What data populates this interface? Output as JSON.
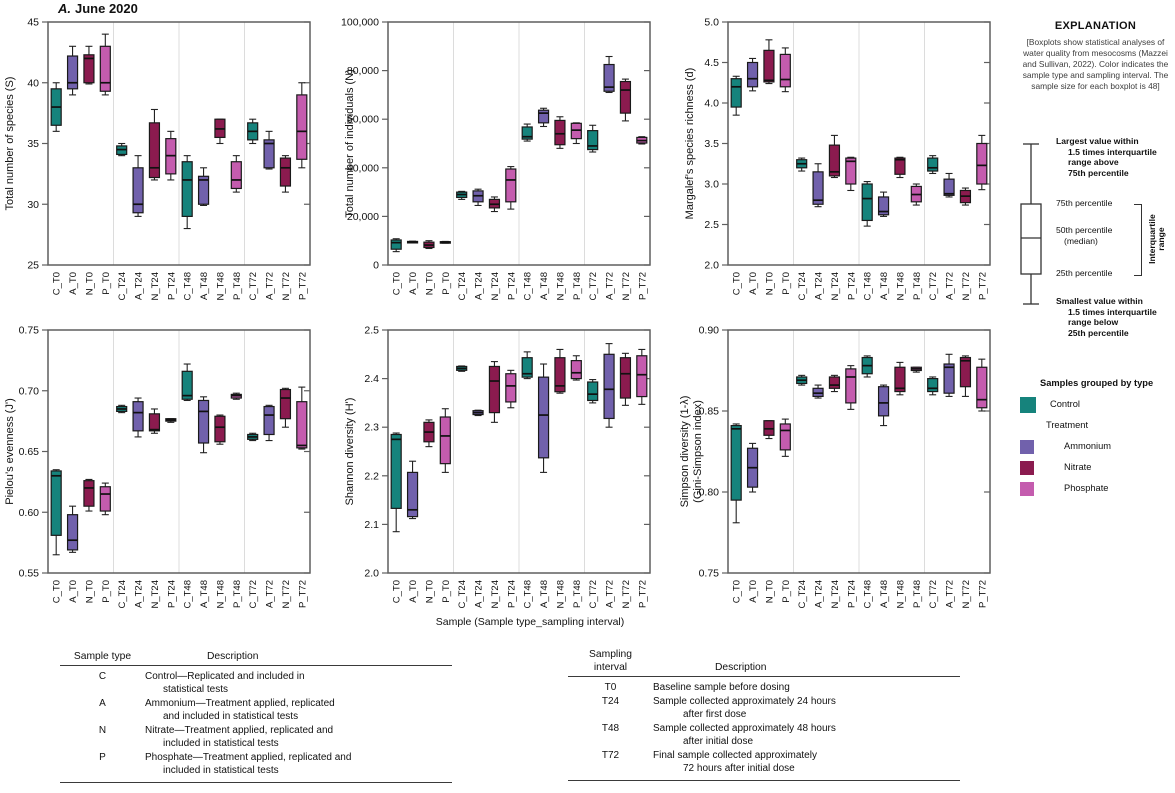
{
  "title": {
    "prefix": "A.",
    "rest": "June 2020"
  },
  "xlabel": "Sample (Sample type_sampling interval)",
  "categories": [
    "C_T0",
    "A_T0",
    "N_T0",
    "P_T0",
    "C_T24",
    "A_T24",
    "N_T24",
    "P_T24",
    "C_T48",
    "A_T48",
    "N_T48",
    "P_T48",
    "C_T72",
    "A_T72",
    "N_T72",
    "P_T72"
  ],
  "colors": {
    "groups": {
      "C": "#16837C",
      "A": "#7161AC",
      "N": "#8B1B4F",
      "P": "#C45CAE"
    },
    "frame": "#5f5f5f",
    "separator": "#dcdcdc",
    "box_stroke": "#222222"
  },
  "chart_data": [
    {
      "type": "box",
      "ylabel": [
        "Total number of species (S)"
      ],
      "ylim": [
        25,
        45
      ],
      "yticks": [
        25,
        30,
        35,
        40,
        45
      ],
      "ytick_labels": [
        "25",
        "30",
        "35",
        "40",
        "45"
      ],
      "values": [
        [
          36,
          36.5,
          38,
          39.5,
          40
        ],
        [
          39,
          39.5,
          40,
          42.2,
          43
        ],
        [
          39.9,
          40,
          42,
          42.3,
          43
        ],
        [
          39,
          39.3,
          40,
          43,
          44
        ],
        [
          34,
          34.1,
          34.5,
          34.8,
          35
        ],
        [
          29,
          29.3,
          30,
          33,
          34
        ],
        [
          32,
          32.2,
          33,
          36.7,
          37.8
        ],
        [
          32,
          32.5,
          34,
          35.4,
          36
        ],
        [
          28,
          29,
          32,
          33.5,
          34
        ],
        [
          29.9,
          30,
          32,
          32.3,
          33
        ],
        [
          35,
          35.5,
          36.2,
          37,
          37
        ],
        [
          31,
          31.3,
          32,
          33.5,
          34
        ],
        [
          35,
          35.3,
          36,
          36.7,
          37
        ],
        [
          32.9,
          33,
          35,
          35.3,
          36
        ],
        [
          31,
          31.5,
          33,
          33.8,
          34
        ],
        [
          33,
          33.7,
          36,
          39,
          40
        ]
      ]
    },
    {
      "type": "box",
      "ylabel": [
        "Total number of individuals (N)"
      ],
      "ylim": [
        0,
        100000
      ],
      "yticks": [
        0,
        20000,
        40000,
        60000,
        80000,
        100000
      ],
      "ytick_labels": [
        "0",
        "20,000",
        "40,000",
        "60,000",
        "80,000",
        "100,000"
      ],
      "values": [
        [
          5500,
          6500,
          9200,
          10300,
          10800
        ],
        [
          9200,
          9300,
          9500,
          9700,
          9800
        ],
        [
          6800,
          7200,
          8200,
          9400,
          10000
        ],
        [
          9000,
          9200,
          9400,
          9600,
          9700
        ],
        [
          27000,
          27800,
          29000,
          30000,
          30300
        ],
        [
          24500,
          26000,
          28500,
          30500,
          31200
        ],
        [
          22000,
          23500,
          25000,
          27000,
          28000
        ],
        [
          23000,
          26000,
          35000,
          39500,
          40500
        ],
        [
          51000,
          51800,
          52800,
          56800,
          58000
        ],
        [
          57000,
          58500,
          62500,
          63700,
          64500
        ],
        [
          48000,
          49500,
          54000,
          59500,
          61000
        ],
        [
          50000,
          52000,
          55500,
          58300,
          58500
        ],
        [
          46500,
          47500,
          49000,
          55300,
          57500
        ],
        [
          71000,
          71500,
          73200,
          82500,
          85800
        ],
        [
          59300,
          62500,
          72000,
          75500,
          76500
        ],
        [
          49800,
          50200,
          51200,
          52500,
          52800
        ]
      ]
    },
    {
      "type": "box",
      "ylabel": [
        "Margalef’s species richness (d)"
      ],
      "ylim": [
        2.0,
        5.0
      ],
      "yticks": [
        2.0,
        2.5,
        3.0,
        3.5,
        4.0,
        4.5,
        5.0
      ],
      "ytick_labels": [
        "2.0",
        "2.5",
        "3.0",
        "3.5",
        "4.0",
        "4.5",
        "5.0"
      ],
      "values": [
        [
          3.85,
          3.95,
          4.2,
          4.3,
          4.33
        ],
        [
          4.15,
          4.2,
          4.3,
          4.5,
          4.55
        ],
        [
          4.24,
          4.26,
          4.28,
          4.65,
          4.78
        ],
        [
          4.14,
          4.2,
          4.29,
          4.6,
          4.68
        ],
        [
          3.16,
          3.2,
          3.25,
          3.3,
          3.32
        ],
        [
          2.72,
          2.75,
          2.8,
          3.15,
          3.25
        ],
        [
          3.08,
          3.1,
          3.15,
          3.48,
          3.6
        ],
        [
          2.92,
          3.0,
          3.28,
          3.32,
          3.33
        ],
        [
          2.48,
          2.55,
          2.82,
          3.0,
          3.03
        ],
        [
          2.6,
          2.62,
          2.66,
          2.84,
          2.9
        ],
        [
          3.08,
          3.12,
          3.3,
          3.32,
          3.33
        ],
        [
          2.74,
          2.78,
          2.87,
          2.97,
          3.0
        ],
        [
          3.13,
          3.16,
          3.2,
          3.32,
          3.35
        ],
        [
          2.84,
          2.86,
          2.88,
          3.06,
          3.13
        ],
        [
          2.74,
          2.77,
          2.85,
          2.92,
          2.95
        ],
        [
          2.93,
          3.0,
          3.23,
          3.5,
          3.6
        ]
      ]
    },
    {
      "type": "box",
      "ylabel": [
        "Pielou’s evenness (J')"
      ],
      "ylim": [
        0.55,
        0.75
      ],
      "yticks": [
        0.55,
        0.6,
        0.65,
        0.7,
        0.75
      ],
      "ytick_labels": [
        "0.55",
        "0.60",
        "0.65",
        "0.70",
        "0.75"
      ],
      "values": [
        [
          0.565,
          0.581,
          0.63,
          0.634,
          0.635
        ],
        [
          0.567,
          0.569,
          0.577,
          0.598,
          0.605
        ],
        [
          0.601,
          0.605,
          0.62,
          0.626,
          0.627
        ],
        [
          0.598,
          0.601,
          0.615,
          0.621,
          0.624
        ],
        [
          0.682,
          0.683,
          0.685,
          0.687,
          0.688
        ],
        [
          0.662,
          0.667,
          0.682,
          0.691,
          0.694
        ],
        [
          0.665,
          0.667,
          0.668,
          0.681,
          0.685
        ],
        [
          0.674,
          0.675,
          0.676,
          0.677,
          0.677
        ],
        [
          0.692,
          0.693,
          0.696,
          0.716,
          0.722
        ],
        [
          0.649,
          0.657,
          0.683,
          0.692,
          0.695
        ],
        [
          0.656,
          0.658,
          0.67,
          0.679,
          0.68
        ],
        [
          0.693,
          0.694,
          0.696,
          0.697,
          0.698
        ],
        [
          0.659,
          0.66,
          0.662,
          0.664,
          0.665
        ],
        [
          0.659,
          0.664,
          0.68,
          0.687,
          0.688
        ],
        [
          0.67,
          0.677,
          0.694,
          0.701,
          0.702
        ],
        [
          0.652,
          0.653,
          0.655,
          0.691,
          0.703
        ]
      ]
    },
    {
      "type": "box",
      "ylabel": [
        "Shannon diversity (H')"
      ],
      "ylim": [
        2.0,
        2.5
      ],
      "yticks": [
        2.0,
        2.1,
        2.2,
        2.3,
        2.4,
        2.5
      ],
      "ytick_labels": [
        "2.0",
        "2.1",
        "2.2",
        "2.3",
        "2.4",
        "2.5"
      ],
      "values": [
        [
          2.085,
          2.133,
          2.275,
          2.285,
          2.288
        ],
        [
          2.112,
          2.116,
          2.13,
          2.207,
          2.23
        ],
        [
          2.26,
          2.27,
          2.29,
          2.31,
          2.315
        ],
        [
          2.207,
          2.225,
          2.282,
          2.321,
          2.338
        ],
        [
          2.415,
          2.417,
          2.421,
          2.425,
          2.426
        ],
        [
          2.324,
          2.326,
          2.33,
          2.334,
          2.335
        ],
        [
          2.31,
          2.33,
          2.395,
          2.425,
          2.435
        ],
        [
          2.34,
          2.352,
          2.385,
          2.41,
          2.417
        ],
        [
          2.4,
          2.403,
          2.41,
          2.443,
          2.455
        ],
        [
          2.207,
          2.237,
          2.325,
          2.403,
          2.43
        ],
        [
          2.37,
          2.373,
          2.385,
          2.443,
          2.46
        ],
        [
          2.397,
          2.4,
          2.412,
          2.437,
          2.447
        ],
        [
          2.35,
          2.355,
          2.368,
          2.393,
          2.398
        ],
        [
          2.3,
          2.318,
          2.378,
          2.45,
          2.472
        ],
        [
          2.345,
          2.36,
          2.41,
          2.443,
          2.452
        ],
        [
          2.347,
          2.363,
          2.408,
          2.447,
          2.46
        ]
      ]
    },
    {
      "type": "box",
      "ylabel": [
        "Simpson diversity (1-λ)",
        "(Gini-Simpson index)"
      ],
      "ylim": [
        0.75,
        0.9
      ],
      "yticks": [
        0.75,
        0.8,
        0.85,
        0.9
      ],
      "ytick_labels": [
        "0.75",
        "0.80",
        "0.85",
        "0.90"
      ],
      "values": [
        [
          0.781,
          0.795,
          0.839,
          0.841,
          0.842
        ],
        [
          0.8,
          0.803,
          0.815,
          0.827,
          0.83
        ],
        [
          0.833,
          0.835,
          0.839,
          0.844,
          0.844
        ],
        [
          0.822,
          0.826,
          0.838,
          0.842,
          0.845
        ],
        [
          0.866,
          0.867,
          0.869,
          0.871,
          0.872
        ],
        [
          0.858,
          0.859,
          0.861,
          0.864,
          0.866
        ],
        [
          0.862,
          0.864,
          0.866,
          0.871,
          0.872
        ],
        [
          0.851,
          0.855,
          0.871,
          0.876,
          0.878
        ],
        [
          0.871,
          0.873,
          0.878,
          0.883,
          0.884
        ],
        [
          0.841,
          0.847,
          0.855,
          0.865,
          0.866
        ],
        [
          0.86,
          0.862,
          0.864,
          0.877,
          0.88
        ],
        [
          0.874,
          0.875,
          0.876,
          0.877,
          0.877
        ],
        [
          0.86,
          0.862,
          0.864,
          0.87,
          0.871
        ],
        [
          0.859,
          0.861,
          0.877,
          0.879,
          0.885
        ],
        [
          0.859,
          0.865,
          0.881,
          0.883,
          0.884
        ],
        [
          0.85,
          0.852,
          0.857,
          0.877,
          0.882
        ]
      ]
    }
  ],
  "explanation": {
    "heading": "EXPLANATION",
    "note": "[Boxplots show statistical analyses of water quality from mesocosms (Mazzei and Sullivan, 2022). Color indicates the sample type and sampling interval. The sample size for each boxplot is 48]",
    "largest_lines": [
      "Largest value within",
      "1.5 times interquartile",
      "range above",
      "75th percentile"
    ],
    "p75_label": "75th percentile",
    "median_lines": [
      "50th percentile",
      "(median)"
    ],
    "p25_label": "25th percentile",
    "iqr_lines": [
      "Interquartile",
      "range"
    ],
    "smallest_lines": [
      "Smallest value within",
      "1.5 times interquartile",
      "range below",
      "25th percentile"
    ],
    "legend_heading": "Samples grouped by type",
    "legend": [
      {
        "label": "Control",
        "color": "#16837C",
        "indent": false
      },
      {
        "label": "Treatment",
        "color": null,
        "indent": false
      },
      {
        "label": "Ammonium",
        "color": "#7161AC",
        "indent": true
      },
      {
        "label": "Nitrate",
        "color": "#8B1B4F",
        "indent": true
      },
      {
        "label": "Phosphate",
        "color": "#C45CAE",
        "indent": true
      }
    ]
  },
  "tables": [
    {
      "headers": [
        "Sample type",
        "Description"
      ],
      "rows": [
        {
          "key": "C",
          "desc": [
            "Control—Replicated and included in",
            "statistical tests"
          ]
        },
        {
          "key": "A",
          "desc": [
            "Ammonium—Treatment applied, replicated",
            "and included in statistical tests"
          ]
        },
        {
          "key": "N",
          "desc": [
            "Nitrate—Treatment applied, replicated and",
            "included in statistical tests"
          ]
        },
        {
          "key": "P",
          "desc": [
            "Phosphate—Treatment applied, replicated and",
            "included in statistical tests"
          ]
        }
      ]
    },
    {
      "headers": [
        "Sampling interval",
        "Description"
      ],
      "rows": [
        {
          "key": "T0",
          "desc": [
            "Baseline sample before dosing"
          ]
        },
        {
          "key": "T24",
          "desc": [
            "Sample collected approximately 24 hours",
            "after first dose"
          ]
        },
        {
          "key": "T48",
          "desc": [
            "Sample collected approximately 48 hours",
            "after initial dose"
          ]
        },
        {
          "key": "T72",
          "desc": [
            "Final sample collected approximately",
            "72 hours after initial dose"
          ]
        }
      ]
    }
  ]
}
